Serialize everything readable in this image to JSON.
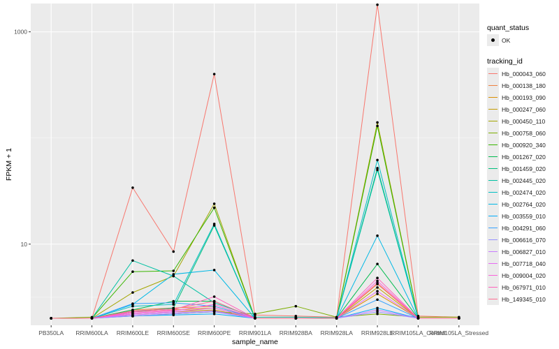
{
  "chart_data": {
    "type": "line",
    "xlabel": "sample_name",
    "ylabel": "FPKM + 1",
    "y_scale": "log10",
    "ylim": [
      1.72,
      1850
    ],
    "y_ticks": [
      10,
      1000
    ],
    "y_tick_labels": [
      "10",
      "1000"
    ],
    "grid": true,
    "legend_position": "right",
    "categories": [
      "PB350LA",
      "RRIM600LA",
      "RRIM600LE",
      "RRIM600SE",
      "RRIM600PE",
      "RRIM901LA",
      "RRIM928BA",
      "RRIM928LA",
      "RRIM928LE",
      "RRIM105LA_Control",
      "RRIM105LA_Stressed"
    ],
    "legend": {
      "quant_title": "quant_status",
      "quant_label": "OK",
      "tracking_title": "tracking_id"
    },
    "series": [
      {
        "name": "Hb_000043_060",
        "color": "#F8766D",
        "values": [
          2,
          2,
          34,
          8.5,
          400,
          2.15,
          2.1,
          2.05,
          1800,
          2.1,
          2.05
        ]
      },
      {
        "name": "Hb_000138_180",
        "color": "#EE8040",
        "values": [
          2,
          2,
          2.4,
          2.5,
          2.6,
          2,
          2,
          2,
          4.2,
          2,
          2
        ]
      },
      {
        "name": "Hb_000193_090",
        "color": "#DB8E00",
        "values": [
          2,
          2,
          2.3,
          2.4,
          2.5,
          2,
          2,
          2,
          3.4,
          2,
          2
        ]
      },
      {
        "name": "Hb_000247_060",
        "color": "#C49A00",
        "values": [
          2,
          2,
          2.2,
          2.3,
          2.4,
          2,
          2,
          2,
          3.9,
          2,
          2
        ]
      },
      {
        "name": "Hb_000450_110",
        "color": "#A3A500",
        "values": [
          2,
          2,
          3.5,
          5.0,
          24,
          2,
          2,
          2,
          140,
          2,
          2
        ]
      },
      {
        "name": "Hb_000758_060",
        "color": "#7CAE00",
        "values": [
          2,
          2.05,
          2.1,
          2.2,
          2.3,
          2.2,
          2.6,
          2.05,
          2.2,
          2.05,
          2.05
        ]
      },
      {
        "name": "Hb_000920_340",
        "color": "#39B600",
        "values": [
          2,
          2,
          5.5,
          5.6,
          22,
          2,
          2,
          2,
          130,
          2,
          2
        ]
      },
      {
        "name": "Hb_001267_020",
        "color": "#00BB4E",
        "values": [
          2,
          2,
          2.4,
          2.9,
          2.9,
          2,
          2,
          2,
          6.5,
          2,
          2
        ]
      },
      {
        "name": "Hb_001459_020",
        "color": "#00BF7D",
        "values": [
          2,
          2,
          2.3,
          2.5,
          15,
          2,
          2,
          2,
          52,
          2,
          2
        ]
      },
      {
        "name": "Hb_002445_020",
        "color": "#00C1A3",
        "values": [
          2,
          2,
          7.0,
          5.0,
          2.8,
          2.05,
          2.05,
          2.02,
          50,
          2,
          2
        ]
      },
      {
        "name": "Hb_002474_020",
        "color": "#00BFC4",
        "values": [
          2,
          2,
          2.6,
          2.7,
          15.5,
          2,
          2,
          2,
          62,
          2,
          2
        ]
      },
      {
        "name": "Hb_002764_020",
        "color": "#00B8E5",
        "values": [
          2,
          2,
          2.7,
          5.2,
          5.7,
          2,
          2,
          2,
          12,
          2,
          2
        ]
      },
      {
        "name": "Hb_003559_010",
        "color": "#00ACFC",
        "values": [
          2,
          2,
          2.1,
          2.15,
          2.2,
          2,
          2,
          2,
          2.5,
          2,
          2
        ]
      },
      {
        "name": "Hb_004291_060",
        "color": "#35A2FF",
        "values": [
          2,
          2,
          2.75,
          2.8,
          2.6,
          2,
          2,
          2,
          3.0,
          2,
          2
        ]
      },
      {
        "name": "Hb_006616_070",
        "color": "#9590FF",
        "values": [
          2,
          2,
          2.1,
          2.2,
          2.3,
          2,
          2,
          2,
          2.3,
          2,
          2
        ]
      },
      {
        "name": "Hb_006827_010",
        "color": "#C77CFF",
        "values": [
          2,
          2,
          2.15,
          2.25,
          2.35,
          2,
          2,
          2,
          2.4,
          2,
          2
        ]
      },
      {
        "name": "Hb_007718_040",
        "color": "#E76BF3",
        "values": [
          2,
          2,
          2.2,
          2.3,
          2.5,
          2,
          2,
          2,
          3.6,
          2,
          2
        ]
      },
      {
        "name": "Hb_009004_020",
        "color": "#FA62DB",
        "values": [
          2,
          2,
          2.25,
          2.35,
          2.7,
          2,
          2,
          2,
          4.5,
          2,
          2
        ]
      },
      {
        "name": "Hb_067971_010",
        "color": "#FF62BC",
        "values": [
          2,
          2,
          2.3,
          2.4,
          3.2,
          2,
          2,
          2,
          4.8,
          2,
          2
        ]
      },
      {
        "name": "Hb_149345_010",
        "color": "#FF6C91",
        "values": [
          2,
          2,
          2.35,
          2.45,
          2.9,
          2,
          2,
          2,
          4.3,
          2,
          2
        ]
      }
    ]
  }
}
